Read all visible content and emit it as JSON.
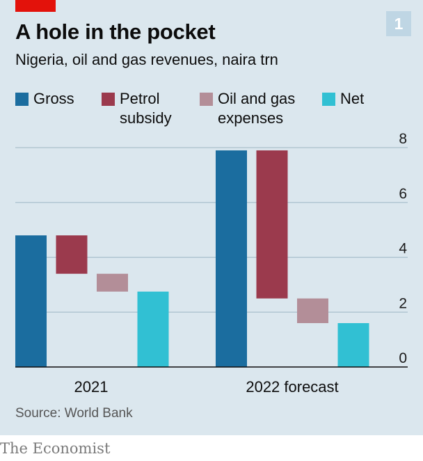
{
  "header": {
    "title": "A hole in the pocket",
    "subtitle": "Nigeria, oil and gas revenues, naira trn",
    "badge": "1",
    "accent_color": "#e3120b"
  },
  "legend": [
    {
      "line1": "Gross",
      "line2": "",
      "color": "#1b6d9f"
    },
    {
      "line1": "Petrol",
      "line2": "subsidy",
      "color": "#9b3a4d"
    },
    {
      "line1": "Oil and gas",
      "line2": "expenses",
      "color": "#b38e98"
    },
    {
      "line1": "Net",
      "line2": "",
      "color": "#31c0d3"
    }
  ],
  "chart_data": {
    "type": "bar",
    "subtype": "waterfall",
    "categories": [
      "2021",
      "2022 forecast"
    ],
    "series": [
      {
        "name": "Gross",
        "color": "#1b6d9f",
        "values": [
          [
            0,
            4.8
          ],
          [
            0,
            7.9
          ]
        ]
      },
      {
        "name": "Petrol subsidy",
        "color": "#9b3a4d",
        "values": [
          [
            3.4,
            4.8
          ],
          [
            2.5,
            7.9
          ]
        ]
      },
      {
        "name": "Oil and gas expenses",
        "color": "#b38e98",
        "values": [
          [
            2.75,
            3.4
          ],
          [
            1.6,
            2.5
          ]
        ]
      },
      {
        "name": "Net",
        "color": "#31c0d3",
        "values": [
          [
            0,
            2.75
          ],
          [
            0,
            1.6
          ]
        ]
      }
    ],
    "yticks": [
      "0",
      "2",
      "4",
      "6",
      "8"
    ],
    "ylim": [
      0,
      8
    ],
    "y_axis_side": "right",
    "grid": true
  },
  "footer": {
    "source": "Source: World Bank",
    "brand": "The Economist"
  }
}
